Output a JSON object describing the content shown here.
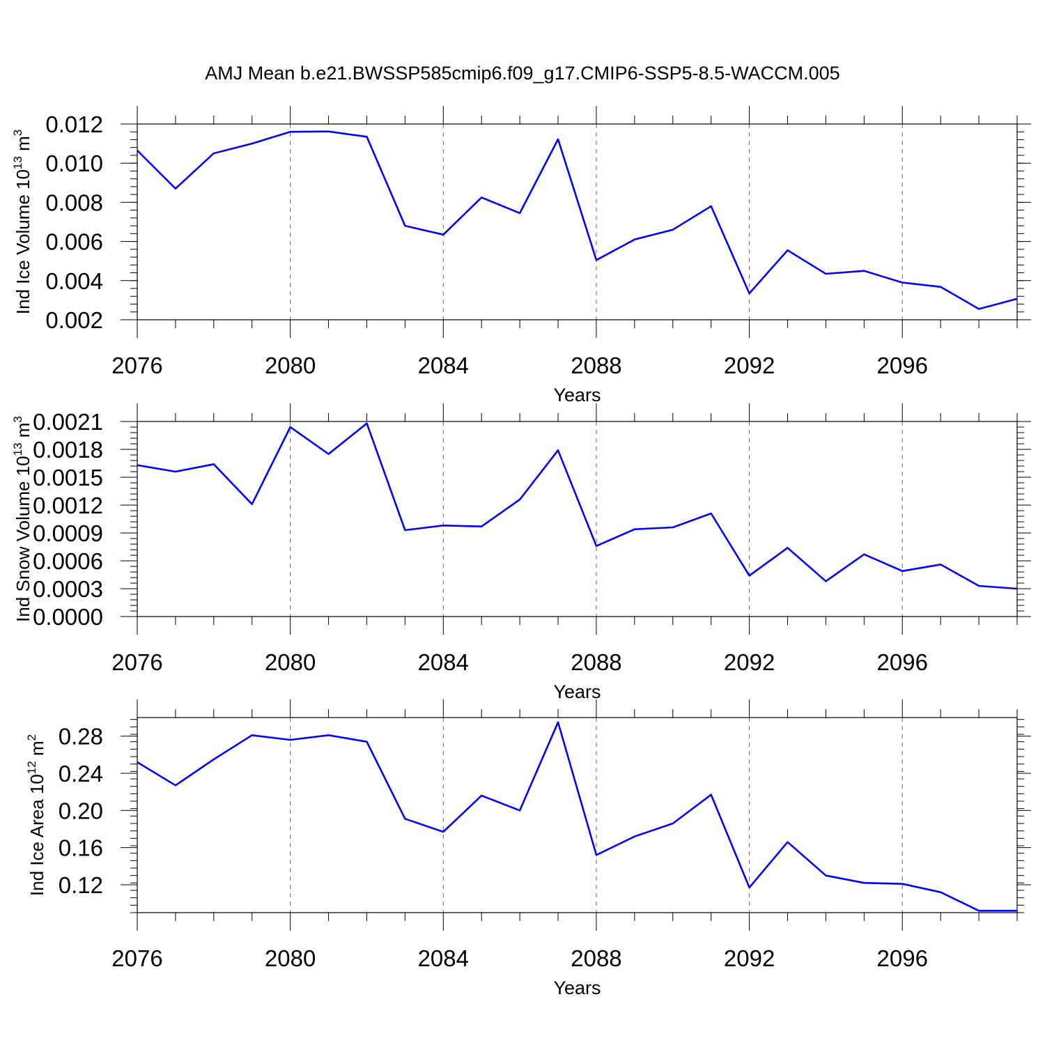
{
  "title": "AMJ Mean b.e21.BWSSP585cmip6.f09_g17.CMIP6-SSP5-8.5-WACCM.005",
  "chart_data": [
    {
      "type": "line",
      "title": "",
      "xlabel": "Years",
      "ylabel_main": "Ind Ice Volume 10",
      "ylabel_exp": "13",
      "ylabel_unit": " m",
      "ylabel_unit_exp": "3",
      "xlim": [
        2076,
        2099
      ],
      "ylim": [
        0.002,
        0.012
      ],
      "x_ticks": [
        "2076",
        "2080",
        "2084",
        "2088",
        "2092",
        "2096"
      ],
      "y_ticks": [
        "0.002",
        "0.004",
        "0.006",
        "0.008",
        "0.010",
        "0.012"
      ],
      "series": [
        {
          "name": "Ind Ice Volume",
          "color": "#0000ff",
          "x": [
            2076,
            2077,
            2078,
            2079,
            2080,
            2081,
            2082,
            2083,
            2084,
            2085,
            2086,
            2087,
            2088,
            2089,
            2090,
            2091,
            2092,
            2093,
            2094,
            2095,
            2096,
            2097,
            2098,
            2099
          ],
          "values": [
            0.01065,
            0.0087,
            0.0105,
            0.011,
            0.0116,
            0.01162,
            0.01135,
            0.0068,
            0.00635,
            0.00825,
            0.00745,
            0.01122,
            0.00505,
            0.0061,
            0.0066,
            0.0078,
            0.00335,
            0.00555,
            0.00435,
            0.0045,
            0.0039,
            0.00368,
            0.00255,
            0.00307
          ]
        }
      ]
    },
    {
      "type": "line",
      "title": "",
      "xlabel": "Years",
      "ylabel_main": "Ind Snow Volume 10",
      "ylabel_exp": "13",
      "ylabel_unit": " m",
      "ylabel_unit_exp": "3",
      "xlim": [
        2076,
        2099
      ],
      "ylim": [
        0.0,
        0.0021
      ],
      "x_ticks": [
        "2076",
        "2080",
        "2084",
        "2088",
        "2092",
        "2096"
      ],
      "y_ticks": [
        "0.0000",
        "0.0003",
        "0.0006",
        "0.0009",
        "0.0012",
        "0.0015",
        "0.0018",
        "0.0021"
      ],
      "series": [
        {
          "name": "Ind Snow Volume",
          "color": "#0000ff",
          "x": [
            2076,
            2077,
            2078,
            2079,
            2080,
            2081,
            2082,
            2083,
            2084,
            2085,
            2086,
            2087,
            2088,
            2089,
            2090,
            2091,
            2092,
            2093,
            2094,
            2095,
            2096,
            2097,
            2098,
            2099
          ],
          "values": [
            0.00163,
            0.00156,
            0.00164,
            0.00121,
            0.00204,
            0.00175,
            0.00208,
            0.00093,
            0.00098,
            0.00097,
            0.00126,
            0.00179,
            0.00076,
            0.00094,
            0.00096,
            0.00111,
            0.00044,
            0.00074,
            0.00038,
            0.00067,
            0.00049,
            0.00056,
            0.00033,
            0.0003
          ]
        }
      ]
    },
    {
      "type": "line",
      "title": "",
      "xlabel": "Years",
      "ylabel_main": "Ind Ice Area 10",
      "ylabel_exp": "12",
      "ylabel_unit": " m",
      "ylabel_unit_exp": "2",
      "xlim": [
        2076,
        2099
      ],
      "ylim": [
        0.09,
        0.3
      ],
      "x_ticks": [
        "2076",
        "2080",
        "2084",
        "2088",
        "2092",
        "2096"
      ],
      "y_ticks": [
        "0.12",
        "0.16",
        "0.20",
        "0.24",
        "0.28"
      ],
      "series": [
        {
          "name": "Ind Ice Area",
          "color": "#0000ff",
          "x": [
            2076,
            2077,
            2078,
            2079,
            2080,
            2081,
            2082,
            2083,
            2084,
            2085,
            2086,
            2087,
            2088,
            2089,
            2090,
            2091,
            2092,
            2093,
            2094,
            2095,
            2096,
            2097,
            2098,
            2099
          ],
          "values": [
            0.252,
            0.227,
            0.255,
            0.281,
            0.276,
            0.281,
            0.274,
            0.191,
            0.177,
            0.216,
            0.2,
            0.295,
            0.152,
            0.172,
            0.186,
            0.217,
            0.117,
            0.166,
            0.13,
            0.122,
            0.121,
            0.112,
            0.092,
            0.092
          ]
        }
      ]
    }
  ]
}
